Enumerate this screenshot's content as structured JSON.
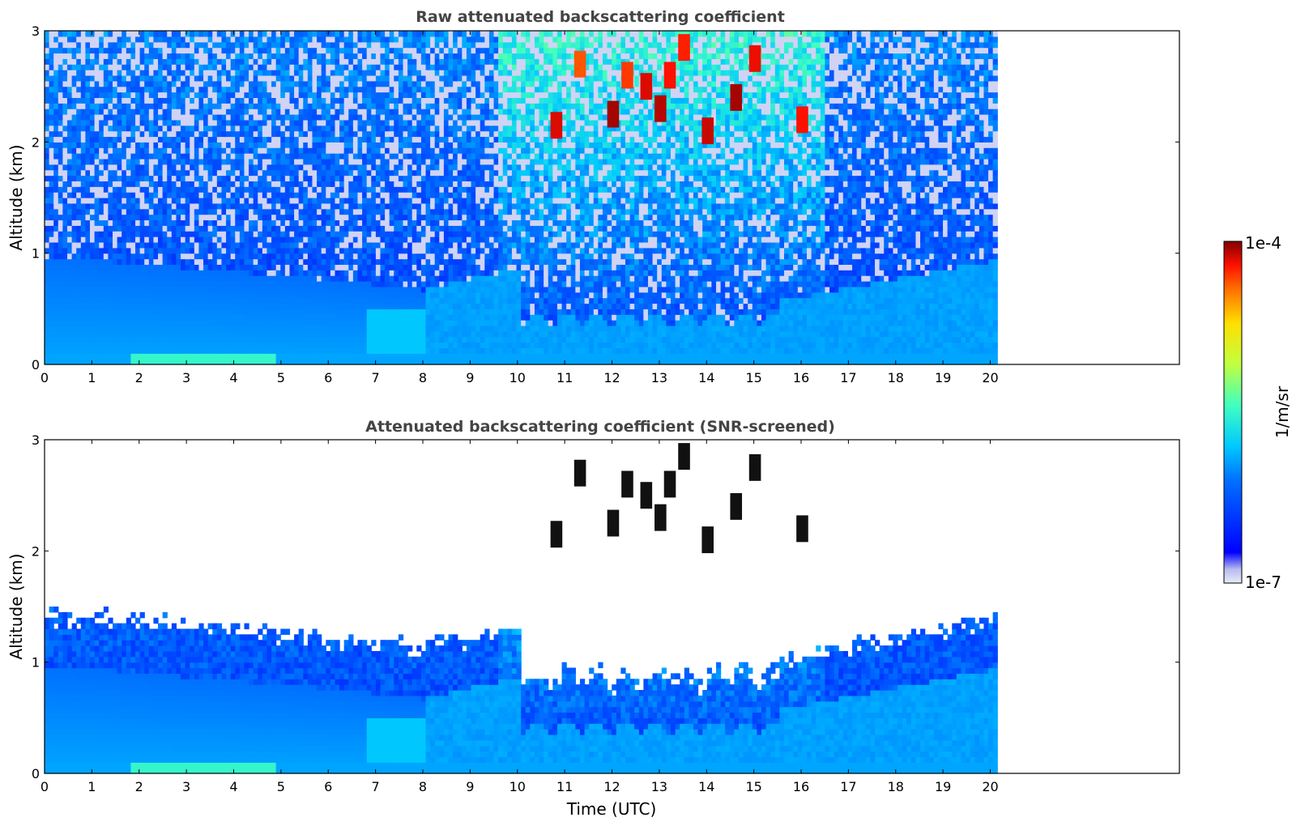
{
  "colorbar": {
    "max_label": "1e-4",
    "min_label": "1e-7",
    "unit_label": "1/m/sr",
    "vmin": 1e-07,
    "vmax": 0.0001,
    "scale": "log",
    "colormap": "jet"
  },
  "chart_data": [
    {
      "type": "heatmap",
      "title": "Raw attenuated backscattering coefficient",
      "xlabel": "",
      "ylabel": "Altitude (km)",
      "xlim": [
        0,
        24
      ],
      "ylim": [
        0,
        3
      ],
      "x_ticks": [
        "0",
        "1",
        "2",
        "3",
        "4",
        "5",
        "6",
        "7",
        "8",
        "9",
        "10",
        "11",
        "12",
        "13",
        "14",
        "15",
        "16",
        "17",
        "18",
        "19",
        "20"
      ],
      "y_ticks": [
        "0",
        "1",
        "2",
        "3"
      ],
      "data_extent_hours": [
        0,
        20.15
      ],
      "snr_screened": false
    },
    {
      "type": "heatmap",
      "title": "Attenuated backscattering coefficient (SNR-screened)",
      "xlabel": "Time (UTC)",
      "ylabel": "Altitude (km)",
      "xlim": [
        0,
        24
      ],
      "ylim": [
        0,
        3
      ],
      "x_ticks": [
        "0",
        "1",
        "2",
        "3",
        "4",
        "5",
        "6",
        "7",
        "8",
        "9",
        "10",
        "11",
        "12",
        "13",
        "14",
        "15",
        "16",
        "17",
        "18",
        "19",
        "20"
      ],
      "y_ticks": [
        "0",
        "1",
        "2",
        "3"
      ],
      "data_extent_hours": [
        0,
        20.15
      ],
      "snr_screened": true
    }
  ]
}
